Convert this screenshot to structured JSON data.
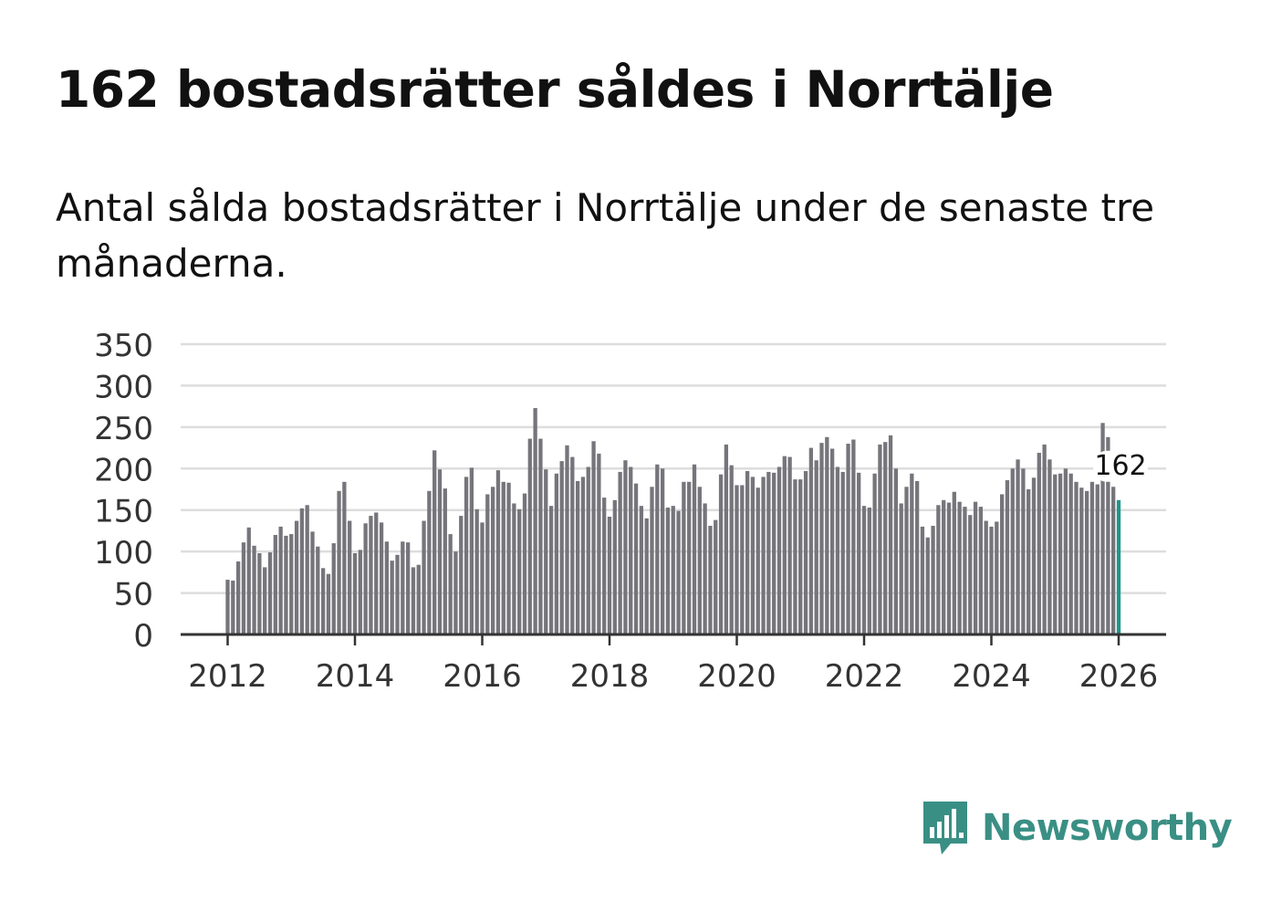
{
  "title": "162 bostadsrätter såldes i Norrtälje",
  "subtitle": "Antal sålda bostadsrätter i Norrtälje under de senaste tre månaderna.",
  "brand": {
    "name": "Newsworthy",
    "icon": "newsworthy-logo-icon",
    "color": "#3a8f84"
  },
  "colors": {
    "bar": "#75757b",
    "highlight": "#21958b",
    "grid": "#dddddd",
    "axis": "#333333"
  },
  "chart_data": {
    "type": "bar",
    "title": "",
    "xlabel": "",
    "ylabel": "",
    "ylim": [
      0,
      350
    ],
    "yticks": [
      "0",
      "50",
      "100",
      "150",
      "200",
      "250",
      "300",
      "350"
    ],
    "xticks": [
      "2012",
      "2014",
      "2016",
      "2018",
      "2020",
      "2022",
      "2024",
      "2026"
    ],
    "grid": true,
    "start": "2012-01",
    "frequency": "monthly",
    "values": [
      66,
      65,
      88,
      111,
      129,
      107,
      98,
      81,
      99,
      120,
      130,
      119,
      121,
      137,
      152,
      156,
      124,
      106,
      80,
      73,
      110,
      173,
      184,
      137,
      98,
      102,
      134,
      143,
      147,
      135,
      112,
      89,
      96,
      112,
      111,
      81,
      84,
      137,
      173,
      222,
      199,
      176,
      121,
      100,
      143,
      190,
      201,
      151,
      135,
      169,
      178,
      198,
      184,
      183,
      158,
      151,
      170,
      236,
      273,
      236,
      199,
      155,
      194,
      209,
      228,
      214,
      185,
      190,
      202,
      233,
      218,
      165,
      142,
      162,
      196,
      210,
      202,
      182,
      155,
      140,
      178,
      205,
      200,
      153,
      155,
      149,
      184,
      184,
      205,
      178,
      158,
      131,
      138,
      193,
      229,
      204,
      180,
      180,
      197,
      190,
      177,
      190,
      196,
      195,
      202,
      215,
      214,
      187,
      187,
      197,
      225,
      210,
      231,
      238,
      224,
      202,
      196,
      230,
      235,
      195,
      155,
      153,
      194,
      229,
      232,
      240,
      200,
      158,
      178,
      194,
      185,
      130,
      117,
      131,
      156,
      162,
      159,
      172,
      160,
      154,
      144,
      160,
      154,
      137,
      130,
      136,
      169,
      186,
      200,
      211,
      200,
      175,
      189,
      219,
      229,
      211,
      193,
      194,
      200,
      194,
      184,
      177,
      173,
      184,
      181,
      255,
      238,
      178,
      162
    ],
    "highlight_index": 168,
    "annotation": "162"
  }
}
